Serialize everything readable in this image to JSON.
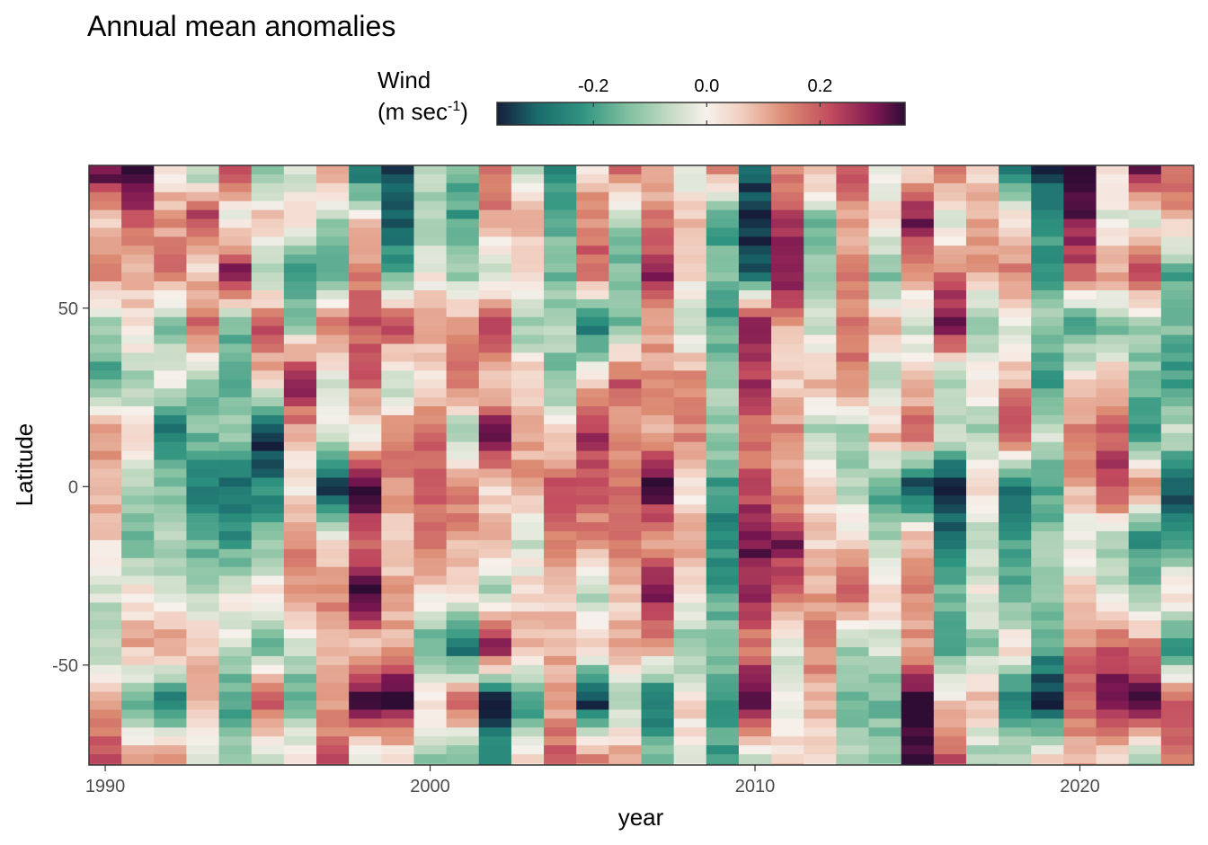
{
  "chart_data": {
    "type": "heatmap",
    "title": "Annual mean anomalies",
    "xlabel": "year",
    "ylabel": "Latitude",
    "legend": {
      "title_line1": "Wind",
      "title_line2_base": "(m sec",
      "title_line2_sup": "-1",
      "title_line2_end": ")",
      "position": "top-center",
      "ticks": [
        -0.2,
        0.0,
        0.2
      ],
      "tick_labels": [
        "-0.2",
        "0.0",
        "0.2"
      ],
      "range": [
        -0.37,
        0.35
      ]
    },
    "colors": {
      "stops": [
        "#151d3b",
        "#1a6a6c",
        "#2f9480",
        "#7fbf9f",
        "#c9dcc6",
        "#f7f1ec",
        "#f1cfc0",
        "#dc8a72",
        "#c14a5e",
        "#7a1651",
        "#2e0c34"
      ],
      "stop_values": [
        -0.37,
        -0.3,
        -0.22,
        -0.14,
        -0.06,
        0.0,
        0.06,
        0.14,
        0.22,
        0.3,
        0.35
      ],
      "panel_border": "#333333",
      "tick_color": "#333333"
    },
    "x": {
      "first_year": 1990,
      "last_year": 2023,
      "lim": [
        1989.5,
        2023.5
      ],
      "ticks": [
        1990,
        2000,
        2010,
        2020
      ],
      "tick_labels": [
        "1990",
        "2000",
        "2010",
        "2020"
      ]
    },
    "y": {
      "lim": [
        -78,
        90
      ],
      "cell_height_deg": 2.5,
      "ticks": [
        -50,
        0,
        50
      ],
      "tick_labels": [
        "-50",
        "0",
        "50"
      ]
    },
    "columns_control_points": {
      "latitudes": [
        88,
        75,
        60,
        45,
        30,
        15,
        0,
        -15,
        -30,
        -45,
        -60,
        -75
      ],
      "values_by_year": [
        [
          0.33,
          0.05,
          0.15,
          -0.1,
          -0.2,
          0.12,
          0.1,
          0.05,
          -0.05,
          -0.1,
          0.12,
          0.2
        ],
        [
          0.35,
          0.2,
          0.08,
          0.05,
          -0.1,
          0.02,
          -0.05,
          -0.18,
          0.03,
          0.1,
          -0.18,
          0.1
        ],
        [
          0.03,
          0.12,
          0.15,
          -0.15,
          0.0,
          -0.3,
          -0.12,
          -0.1,
          -0.05,
          0.15,
          -0.28,
          0.1
        ],
        [
          -0.1,
          0.25,
          0.05,
          0.2,
          -0.12,
          -0.15,
          -0.25,
          -0.18,
          -0.05,
          0.05,
          0.1,
          -0.05
        ],
        [
          0.2,
          -0.05,
          0.3,
          -0.15,
          -0.2,
          -0.1,
          -0.3,
          -0.22,
          0.0,
          -0.05,
          -0.2,
          -0.12
        ],
        [
          -0.15,
          0.1,
          -0.12,
          0.22,
          0.05,
          -0.38,
          -0.25,
          -0.15,
          0.05,
          -0.15,
          0.22,
          -0.08
        ],
        [
          -0.05,
          0.05,
          -0.2,
          -0.1,
          0.3,
          0.1,
          0.0,
          0.15,
          0.1,
          -0.05,
          -0.2,
          0.05
        ],
        [
          0.1,
          -0.1,
          -0.2,
          0.18,
          -0.05,
          0.0,
          -0.38,
          0.05,
          0.15,
          0.1,
          0.1,
          0.2
        ],
        [
          -0.3,
          0.05,
          0.15,
          0.2,
          0.2,
          -0.05,
          0.38,
          0.15,
          0.38,
          0.05,
          0.38,
          -0.05
        ],
        [
          -0.35,
          -0.3,
          -0.18,
          0.25,
          -0.1,
          0.15,
          0.15,
          0.05,
          0.1,
          0.1,
          0.38,
          0.0
        ],
        [
          -0.05,
          -0.1,
          0.0,
          0.1,
          0.05,
          0.2,
          0.18,
          0.18,
          0.02,
          -0.2,
          0.05,
          -0.1
        ],
        [
          -0.15,
          -0.2,
          -0.12,
          0.15,
          0.2,
          -0.12,
          0.18,
          0.1,
          0.05,
          -0.3,
          0.2,
          -0.12
        ],
        [
          0.2,
          0.12,
          -0.1,
          0.28,
          0.02,
          0.32,
          0.05,
          0.12,
          -0.1,
          0.3,
          -0.38,
          -0.2
        ],
        [
          -0.1,
          0.1,
          0.05,
          -0.12,
          0.08,
          0.1,
          0.12,
          -0.05,
          0.05,
          0.1,
          -0.25,
          0.05
        ],
        [
          -0.25,
          -0.15,
          -0.15,
          -0.08,
          -0.15,
          0.05,
          0.2,
          0.15,
          0.05,
          0.1,
          0.1,
          0.2
        ],
        [
          0.05,
          0.15,
          0.2,
          -0.3,
          0.05,
          0.25,
          0.22,
          0.12,
          -0.1,
          0.05,
          -0.38,
          0.15
        ],
        [
          0.2,
          -0.1,
          -0.15,
          -0.15,
          0.2,
          0.12,
          0.15,
          0.2,
          0.05,
          0.12,
          -0.1,
          0.1
        ],
        [
          0.1,
          0.15,
          0.28,
          0.1,
          0.12,
          0.1,
          0.35,
          0.1,
          0.3,
          0.1,
          -0.3,
          -0.12
        ],
        [
          -0.05,
          0.1,
          0.05,
          -0.1,
          0.15,
          0.15,
          0.0,
          0.12,
          0.02,
          -0.15,
          0.05,
          0.0
        ],
        [
          0.15,
          -0.2,
          -0.15,
          -0.2,
          -0.1,
          -0.1,
          -0.2,
          -0.25,
          -0.18,
          -0.12,
          -0.2,
          -0.2
        ],
        [
          -0.3,
          -0.38,
          -0.32,
          0.3,
          0.25,
          0.15,
          0.2,
          0.3,
          0.28,
          0.15,
          0.38,
          -0.05
        ],
        [
          0.15,
          0.25,
          0.32,
          0.1,
          0.05,
          0.15,
          0.1,
          0.3,
          0.15,
          -0.05,
          0.0,
          0.05
        ],
        [
          0.1,
          -0.15,
          -0.1,
          -0.05,
          0.1,
          -0.1,
          0.05,
          0.05,
          0.1,
          0.15,
          0.1,
          0.05
        ],
        [
          0.2,
          0.1,
          0.15,
          0.15,
          0.15,
          -0.12,
          -0.1,
          0.05,
          0.2,
          -0.1,
          -0.15,
          -0.1
        ],
        [
          -0.05,
          0.05,
          -0.15,
          0.1,
          -0.12,
          0.1,
          -0.2,
          -0.1,
          0.05,
          -0.05,
          -0.15,
          -0.1
        ],
        [
          0.05,
          0.3,
          0.1,
          -0.05,
          0.05,
          0.2,
          -0.38,
          0.1,
          0.15,
          0.1,
          0.38,
          0.35
        ],
        [
          0.15,
          -0.05,
          0.15,
          0.35,
          -0.12,
          -0.05,
          -0.38,
          -0.25,
          -0.15,
          -0.2,
          0.05,
          0.2
        ],
        [
          0.05,
          0.1,
          0.1,
          -0.15,
          0.05,
          -0.12,
          0.05,
          -0.1,
          0.0,
          -0.12,
          0.1,
          -0.1
        ],
        [
          -0.25,
          0.05,
          0.15,
          -0.05,
          0.1,
          0.25,
          -0.3,
          -0.2,
          -0.2,
          0.05,
          -0.3,
          -0.05
        ],
        [
          -0.35,
          -0.2,
          -0.2,
          -0.1,
          -0.2,
          -0.05,
          -0.2,
          -0.12,
          -0.08,
          -0.2,
          -0.38,
          0.05
        ],
        [
          0.38,
          0.3,
          0.2,
          -0.22,
          0.05,
          0.15,
          0.1,
          -0.05,
          0.05,
          0.15,
          0.2,
          0.1
        ],
        [
          0.05,
          -0.05,
          0.12,
          -0.15,
          0.1,
          0.2,
          0.25,
          -0.1,
          -0.05,
          0.2,
          0.35,
          0.05
        ],
        [
          0.3,
          -0.05,
          0.25,
          -0.1,
          -0.15,
          -0.2,
          0.15,
          -0.25,
          -0.12,
          0.15,
          0.38,
          -0.1
        ],
        [
          0.2,
          0.1,
          -0.18,
          -0.15,
          -0.2,
          -0.05,
          -0.35,
          -0.2,
          0.05,
          -0.25,
          0.2,
          0.15
        ]
      ]
    }
  }
}
